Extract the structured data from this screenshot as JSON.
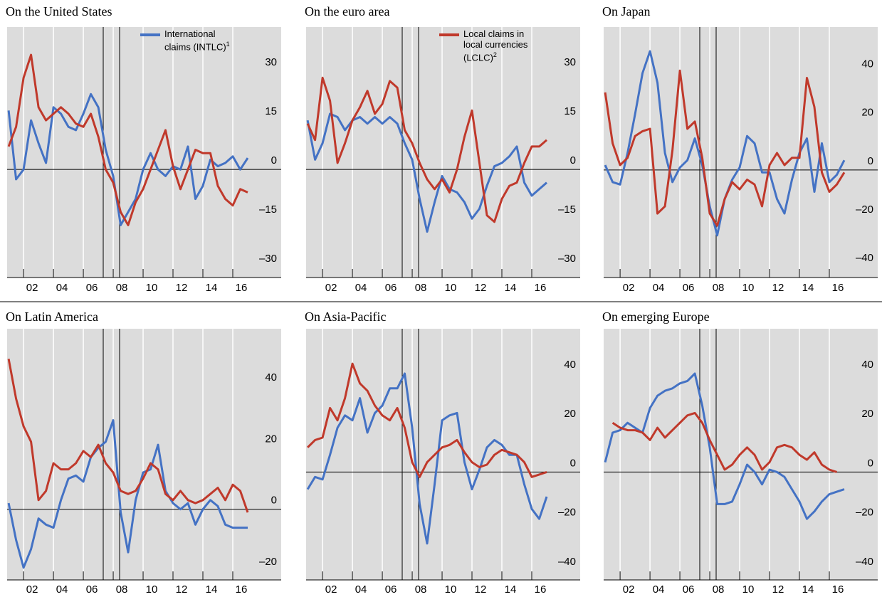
{
  "chart_data": [
    {
      "type": "line",
      "title": "On the United States",
      "x": [
        2001,
        2001.5,
        2002,
        2002.5,
        2003,
        2003.5,
        2004,
        2004.5,
        2005,
        2005.5,
        2006,
        2006.5,
        2007,
        2007.5,
        2008,
        2008.5,
        2009,
        2009.5,
        2010,
        2010.5,
        2011,
        2011.5,
        2012,
        2012.5,
        2013,
        2013.5,
        2014,
        2014.5,
        2015,
        2015.5,
        2016,
        2016.5,
        2017
      ],
      "xlim": [
        2000.9,
        2019.24
      ],
      "xticks": [
        {
          "value": 2002,
          "label": "02"
        },
        {
          "value": 2004,
          "label": "04"
        },
        {
          "value": 2006,
          "label": "06"
        },
        {
          "value": 2008,
          "label": "08"
        },
        {
          "value": 2010,
          "label": "10"
        },
        {
          "value": 2012,
          "label": "12"
        },
        {
          "value": 2014,
          "label": "14"
        },
        {
          "value": 2016,
          "label": "16"
        }
      ],
      "ylim": [
        -33,
        43.5
      ],
      "yticks": [
        {
          "value": -30,
          "label": "–30"
        },
        {
          "value": -15,
          "label": "–15"
        },
        0,
        15,
        30
      ],
      "series": [
        {
          "name": "International claims (INTLC)",
          "footnote": "1",
          "color": "#4472c4",
          "values": [
            18,
            -3,
            0,
            15,
            8,
            2,
            19,
            17,
            13,
            12,
            17,
            23,
            19,
            6,
            -2,
            -17,
            -13,
            -9,
            0,
            5,
            0,
            -2,
            1,
            0,
            7,
            -9,
            -5,
            3,
            1,
            2,
            4,
            0,
            3.5
          ]
        },
        {
          "color": "#c0392b",
          "values": [
            7,
            13,
            28,
            35,
            19,
            15,
            17,
            19,
            17,
            14,
            13,
            17,
            10,
            0,
            -4,
            -13,
            -17,
            -10,
            -6,
            0,
            6,
            12,
            1,
            -6,
            0,
            6,
            5,
            5,
            -5,
            -9,
            -11,
            -6,
            -7
          ]
        }
      ]
    },
    {
      "type": "line",
      "title": "On the euro area",
      "x": [
        2001,
        2001.5,
        2002,
        2002.5,
        2003,
        2003.5,
        2004,
        2004.5,
        2005,
        2005.5,
        2006,
        2006.5,
        2007,
        2007.5,
        2008,
        2008.5,
        2009,
        2009.5,
        2010,
        2010.5,
        2011,
        2011.5,
        2012,
        2012.5,
        2013,
        2013.5,
        2014,
        2014.5,
        2015,
        2015.5,
        2016,
        2016.5,
        2017
      ],
      "xlim": [
        2000.9,
        2019.24
      ],
      "xticks": [
        {
          "value": 2002,
          "label": "02"
        },
        {
          "value": 2004,
          "label": "04"
        },
        {
          "value": 2006,
          "label": "06"
        },
        {
          "value": 2008,
          "label": "08"
        },
        {
          "value": 2010,
          "label": "10"
        },
        {
          "value": 2012,
          "label": "12"
        },
        {
          "value": 2014,
          "label": "14"
        },
        {
          "value": 2016,
          "label": "16"
        }
      ],
      "ylim": [
        -33,
        43.5
      ],
      "yticks": [
        {
          "value": -30,
          "label": "–30"
        },
        {
          "value": -15,
          "label": "–15"
        },
        0,
        15,
        30
      ],
      "series": [
        {
          "color": "#4472c4",
          "values": [
            15,
            3,
            8,
            17,
            16,
            12,
            15,
            16,
            14,
            16,
            14,
            16,
            14,
            8,
            3,
            -9,
            -19,
            -10,
            -2,
            -6,
            -7,
            -10,
            -15,
            -12,
            -5,
            1,
            2,
            4,
            7,
            -4,
            -8,
            -6,
            -4
          ]
        },
        {
          "name": "Local claims in local currencies (LCLC)",
          "footnote": "2",
          "color": "#c0392b",
          "values": [
            14,
            9,
            28,
            21,
            2,
            8,
            15,
            19,
            24,
            17,
            20,
            27,
            25,
            12,
            8,
            2,
            -3,
            -6,
            -3,
            -7,
            0,
            10,
            18,
            2,
            -14,
            -16,
            -9,
            -5,
            -4,
            2,
            7,
            7,
            9
          ]
        }
      ]
    },
    {
      "type": "line",
      "title": "On Japan",
      "x": [
        2001,
        2001.5,
        2002,
        2002.5,
        2003,
        2003.5,
        2004,
        2004.5,
        2005,
        2005.5,
        2006,
        2006.5,
        2007,
        2007.5,
        2008,
        2008.5,
        2009,
        2009.5,
        2010,
        2010.5,
        2011,
        2011.5,
        2012,
        2012.5,
        2013,
        2013.5,
        2014,
        2014.5,
        2015,
        2015.5,
        2016,
        2016.5,
        2017
      ],
      "xlim": [
        2000.9,
        2019.24
      ],
      "xticks": [
        {
          "value": 2002,
          "label": "02"
        },
        {
          "value": 2004,
          "label": "04"
        },
        {
          "value": 2006,
          "label": "06"
        },
        {
          "value": 2008,
          "label": "08"
        },
        {
          "value": 2010,
          "label": "10"
        },
        {
          "value": 2012,
          "label": "12"
        },
        {
          "value": 2014,
          "label": "14"
        },
        {
          "value": 2016,
          "label": "16"
        }
      ],
      "ylim": [
        -44.4,
        59
      ],
      "yticks": [
        {
          "value": -40,
          "label": "–40"
        },
        {
          "value": -20,
          "label": "–20"
        },
        0,
        20,
        40
      ],
      "series": [
        {
          "color": "#4472c4",
          "values": [
            2,
            -5,
            -6,
            7,
            23,
            40,
            49,
            36,
            7,
            -5,
            1,
            4,
            13,
            2,
            -15,
            -27,
            -12,
            -4,
            1,
            14,
            11,
            -1,
            -1,
            -12,
            -18,
            -4,
            7,
            13,
            -9,
            11,
            -5,
            -2,
            4
          ]
        },
        {
          "color": "#c0392b",
          "values": [
            32,
            11,
            2,
            5,
            14,
            16,
            17,
            -18,
            -15,
            8,
            41,
            17,
            20,
            5,
            -18,
            -23,
            -12,
            -5,
            -8,
            -4,
            -6,
            -15,
            2,
            7,
            2,
            5,
            5,
            38,
            26,
            -1,
            -9,
            -6,
            -1
          ]
        }
      ]
    },
    {
      "type": "line",
      "title": "On Latin America",
      "x": [
        2001,
        2001.5,
        2002,
        2002.5,
        2003,
        2003.5,
        2004,
        2004.5,
        2005,
        2005.5,
        2006,
        2006.5,
        2007,
        2007.5,
        2008,
        2008.5,
        2009,
        2009.5,
        2010,
        2010.5,
        2011,
        2011.5,
        2012,
        2012.5,
        2013,
        2013.5,
        2014,
        2014.5,
        2015,
        2015.5,
        2016,
        2016.5,
        2017
      ],
      "xlim": [
        2000.9,
        2019.24
      ],
      "xticks": [
        {
          "value": 2002,
          "label": "02"
        },
        {
          "value": 2004,
          "label": "04"
        },
        {
          "value": 2006,
          "label": "06"
        },
        {
          "value": 2008,
          "label": "08"
        },
        {
          "value": 2010,
          "label": "10"
        },
        {
          "value": 2012,
          "label": "12"
        },
        {
          "value": 2014,
          "label": "14"
        },
        {
          "value": 2016,
          "label": "16"
        }
      ],
      "ylim": [
        -23,
        58.8
      ],
      "yticks": [
        {
          "value": -20,
          "label": "–20"
        },
        0,
        20,
        40
      ],
      "series": [
        {
          "color": "#4472c4",
          "values": [
            2,
            -10,
            -19,
            -13,
            -3,
            -5,
            -6,
            3,
            10,
            11,
            9,
            17,
            20,
            22,
            29,
            -1,
            -14,
            3,
            12,
            13,
            21,
            6,
            2,
            0,
            2,
            -5,
            0,
            3,
            1,
            -5,
            -6,
            -6,
            -6
          ]
        },
        {
          "color": "#c0392b",
          "values": [
            49,
            36,
            27,
            22,
            3,
            6,
            15,
            13,
            13,
            15,
            19,
            17,
            21,
            15,
            12,
            6,
            5,
            6,
            10,
            15,
            13,
            5,
            3,
            6,
            3,
            2,
            3,
            5,
            7,
            3,
            8,
            6,
            -1
          ]
        }
      ]
    },
    {
      "type": "line",
      "title": "On Asia-Pacific",
      "x": [
        2001,
        2001.5,
        2002,
        2002.5,
        2003,
        2003.5,
        2004,
        2004.5,
        2005,
        2005.5,
        2006,
        2006.5,
        2007,
        2007.5,
        2008,
        2008.5,
        2009,
        2009.5,
        2010,
        2010.5,
        2011,
        2011.5,
        2012,
        2012.5,
        2013,
        2013.5,
        2014,
        2014.5,
        2015,
        2015.5,
        2016,
        2016.5,
        2017
      ],
      "xlim": [
        2000.9,
        2019.24
      ],
      "xticks": [
        {
          "value": 2002,
          "label": "02"
        },
        {
          "value": 2004,
          "label": "04"
        },
        {
          "value": 2006,
          "label": "06"
        },
        {
          "value": 2008,
          "label": "08"
        },
        {
          "value": 2010,
          "label": "10"
        },
        {
          "value": 2012,
          "label": "12"
        },
        {
          "value": 2014,
          "label": "14"
        },
        {
          "value": 2016,
          "label": "16"
        }
      ],
      "ylim": [
        -43.8,
        58.2
      ],
      "yticks": [
        {
          "value": -40,
          "label": "–40"
        },
        {
          "value": -20,
          "label": "–20"
        },
        0,
        20,
        40
      ],
      "series": [
        {
          "color": "#4472c4",
          "values": [
            -7,
            -2,
            -3,
            7,
            18,
            23,
            21,
            30,
            16,
            24,
            27,
            34,
            34,
            40,
            18,
            -13,
            -29,
            -5,
            21,
            23,
            24,
            4,
            -7,
            1,
            10,
            13,
            11,
            7,
            7,
            -5,
            -15,
            -19,
            -10
          ]
        },
        {
          "color": "#c0392b",
          "values": [
            10,
            13,
            14,
            26,
            21,
            30,
            44,
            36,
            33,
            27,
            23,
            21,
            26,
            18,
            4,
            -2,
            4,
            7,
            10,
            11,
            13,
            8,
            4,
            2,
            3,
            7,
            9,
            8,
            7,
            4,
            -2,
            -1,
            0
          ]
        }
      ]
    },
    {
      "type": "line",
      "title": "On emerging Europe",
      "x": [
        2001,
        2001.5,
        2002,
        2002.5,
        2003,
        2003.5,
        2004,
        2004.5,
        2005,
        2005.5,
        2006,
        2006.5,
        2007,
        2007.5,
        2008,
        2008.5,
        2009,
        2009.5,
        2010,
        2010.5,
        2011,
        2011.5,
        2012,
        2012.5,
        2013,
        2013.5,
        2014,
        2014.5,
        2015,
        2015.5,
        2016,
        2016.5,
        2017
      ],
      "xlim": [
        2000.9,
        2019.24
      ],
      "xticks": [
        {
          "value": 2002,
          "label": "02"
        },
        {
          "value": 2004,
          "label": "04"
        },
        {
          "value": 2006,
          "label": "06"
        },
        {
          "value": 2008,
          "label": "08"
        },
        {
          "value": 2010,
          "label": "10"
        },
        {
          "value": 2012,
          "label": "12"
        },
        {
          "value": 2014,
          "label": "14"
        },
        {
          "value": 2016,
          "label": "16"
        }
      ],
      "ylim": [
        -43.8,
        58.2
      ],
      "yticks": [
        {
          "value": -40,
          "label": "–40"
        },
        {
          "value": -20,
          "label": "–20"
        },
        0,
        20,
        40
      ],
      "series": [
        {
          "color": "#4472c4",
          "values": [
            4,
            16,
            17,
            20,
            18,
            16,
            26,
            31,
            33,
            34,
            36,
            37,
            40,
            27,
            10,
            -13,
            -13,
            -12,
            -5,
            3,
            0,
            -5,
            1,
            0,
            -2,
            -7,
            -12,
            -19,
            -16,
            -12,
            -9,
            -8,
            -7
          ]
        },
        {
          "color": "#c0392b",
          "values": [
            null,
            20,
            18,
            17,
            17,
            16,
            13,
            18,
            14,
            17,
            20,
            23,
            24,
            20,
            13,
            7,
            1,
            3,
            7,
            10,
            7,
            1,
            4,
            10,
            11,
            10,
            7,
            5,
            8,
            3,
            1,
            0,
            null
          ]
        }
      ]
    }
  ]
}
